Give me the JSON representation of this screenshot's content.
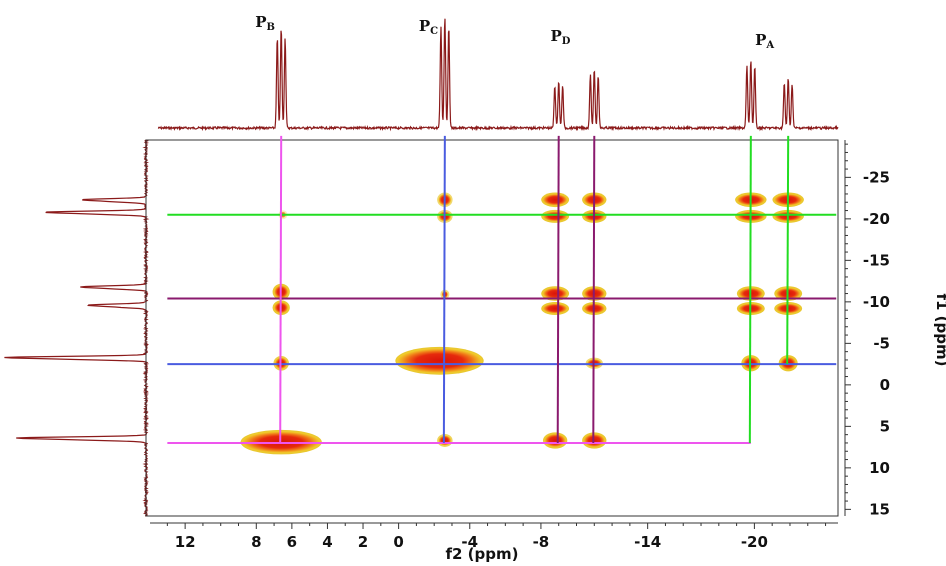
{
  "chart_data": {
    "type": "heatmap",
    "subtype": "2D NMR correlation map with 1D projections",
    "xlabel": "f2 (ppm)",
    "ylabel": "f1 (ppm)",
    "xlim": [
      14.2,
      -24.7
    ],
    "ylim": [
      -29.5,
      15.8
    ],
    "x_ticks": [
      12,
      8,
      6,
      4,
      2,
      0,
      -4,
      -8,
      -14,
      -20
    ],
    "x_tick_labels": [
      "12",
      "8",
      "6",
      "4",
      "2",
      "0",
      "-4",
      "-8",
      "-14",
      "-20"
    ],
    "y_ticks": [
      -25,
      -20,
      -15,
      -10,
      -5,
      0,
      5,
      10,
      15
    ],
    "y_tick_labels": [
      "-25",
      "-20",
      "-15",
      "-10",
      "-5",
      "0",
      "5",
      "10",
      "15"
    ],
    "grid": false,
    "colors": {
      "spectrum": "#8b1a1a",
      "contour_outer": "#e8c21a",
      "contour_inner": "#e01d0b",
      "frame": "#333333"
    },
    "peak_labels": [
      {
        "main": "P",
        "sub": "B",
        "x": 6.6
      },
      {
        "main": "P",
        "sub": "C",
        "x": -2.6
      },
      {
        "main": "P",
        "sub": "D",
        "x": -10.0
      },
      {
        "main": "P",
        "sub": "A",
        "x": -21.5
      }
    ],
    "projection_f2_peaks": [
      {
        "x": 6.6,
        "height": 0.85,
        "multiplet": 3,
        "spacing": 0.22
      },
      {
        "x": -2.6,
        "height": 0.95,
        "multiplet": 3,
        "spacing": 0.22
      },
      {
        "x": -9.0,
        "height": 0.4,
        "multiplet": 3,
        "spacing": 0.22
      },
      {
        "x": -11.0,
        "height": 0.5,
        "multiplet": 3,
        "spacing": 0.22
      },
      {
        "x": -19.8,
        "height": 0.58,
        "multiplet": 3,
        "spacing": 0.22
      },
      {
        "x": -21.9,
        "height": 0.42,
        "multiplet": 3,
        "spacing": 0.22
      }
    ],
    "projection_f1_peaks": [
      {
        "y": -22.3,
        "height": 0.45
      },
      {
        "y": -20.8,
        "height": 0.7
      },
      {
        "y": -11.8,
        "height": 0.45
      },
      {
        "y": -9.6,
        "height": 0.4
      },
      {
        "y": -3.3,
        "height": 0.98
      },
      {
        "y": 6.4,
        "height": 0.9
      }
    ],
    "series": [
      {
        "name": "",
        "orientation": "horizontal",
        "y": -20.5,
        "x_range": [
          13.0,
          -24.6
        ],
        "color": "#22dd22"
      },
      {
        "name": "",
        "orientation": "horizontal",
        "y": -10.4,
        "x_range": [
          13.0,
          -24.6
        ],
        "color": "#8a1a6e"
      },
      {
        "name": "",
        "orientation": "horizontal",
        "y": -2.5,
        "x_range": [
          13.0,
          -24.6
        ],
        "color": "#4a5ce0"
      },
      {
        "name": "",
        "orientation": "horizontal",
        "y": 7.0,
        "x_range": [
          13.0,
          -19.8
        ],
        "color": "#ee55ee"
      },
      {
        "name": "",
        "orientation": "vertical",
        "x": 6.6,
        "y_range": [
          -30.0,
          7.0
        ],
        "color": "#ee55ee"
      },
      {
        "name": "",
        "orientation": "vertical",
        "x": -2.6,
        "y_range": [
          -30.0,
          7.0
        ],
        "color": "#4a5ce0"
      },
      {
        "name": "",
        "orientation": "vertical",
        "x": -9.0,
        "y_range": [
          -30.0,
          7.0
        ],
        "color": "#8a1a6e"
      },
      {
        "name": "",
        "orientation": "vertical",
        "x": -11.0,
        "y_range": [
          -30.0,
          7.0
        ],
        "color": "#8a1a6e"
      },
      {
        "name": "",
        "orientation": "vertical",
        "x": -19.8,
        "y_range": [
          -30.0,
          7.0
        ],
        "color": "#22dd22"
      },
      {
        "name": "",
        "orientation": "vertical",
        "x": -21.9,
        "y_range": [
          -30.0,
          -2.5
        ],
        "color": "#22dd22"
      }
    ],
    "cross_peaks": [
      {
        "x": -2.6,
        "y": -22.3,
        "rx": 0.35,
        "ry": 0.7,
        "intensity": 0.7
      },
      {
        "x": -2.6,
        "y": -20.3,
        "rx": 0.35,
        "ry": 0.6,
        "intensity": 0.7
      },
      {
        "x": 6.5,
        "y": -20.5,
        "rx": 0.1,
        "ry": 0.3,
        "intensity": 0.3
      },
      {
        "x": -8.8,
        "y": -22.3,
        "rx": 0.7,
        "ry": 0.7,
        "intensity": 1.0
      },
      {
        "x": -8.8,
        "y": -20.3,
        "rx": 0.7,
        "ry": 0.6,
        "intensity": 1.0
      },
      {
        "x": -11.0,
        "y": -22.3,
        "rx": 0.6,
        "ry": 0.7,
        "intensity": 1.0
      },
      {
        "x": -11.0,
        "y": -20.3,
        "rx": 0.6,
        "ry": 0.6,
        "intensity": 1.0
      },
      {
        "x": -19.8,
        "y": -22.3,
        "rx": 0.8,
        "ry": 0.7,
        "intensity": 1.0
      },
      {
        "x": -19.8,
        "y": -20.3,
        "rx": 0.8,
        "ry": 0.6,
        "intensity": 1.0
      },
      {
        "x": -21.9,
        "y": -22.3,
        "rx": 0.8,
        "ry": 0.7,
        "intensity": 1.0
      },
      {
        "x": -21.9,
        "y": -20.3,
        "rx": 0.8,
        "ry": 0.6,
        "intensity": 1.0
      },
      {
        "x": 6.6,
        "y": -11.2,
        "rx": 0.4,
        "ry": 0.8,
        "intensity": 1.0
      },
      {
        "x": 6.6,
        "y": -9.3,
        "rx": 0.4,
        "ry": 0.7,
        "intensity": 1.0
      },
      {
        "x": -2.6,
        "y": -10.9,
        "rx": 0.12,
        "ry": 0.4,
        "intensity": 0.6
      },
      {
        "x": -8.8,
        "y": -11.0,
        "rx": 0.7,
        "ry": 0.7,
        "intensity": 1.0
      },
      {
        "x": -8.8,
        "y": -9.2,
        "rx": 0.7,
        "ry": 0.6,
        "intensity": 1.0
      },
      {
        "x": -11.0,
        "y": -11.0,
        "rx": 0.6,
        "ry": 0.7,
        "intensity": 1.0
      },
      {
        "x": -11.0,
        "y": -9.2,
        "rx": 0.6,
        "ry": 0.6,
        "intensity": 1.0
      },
      {
        "x": -19.8,
        "y": -11.0,
        "rx": 0.7,
        "ry": 0.7,
        "intensity": 1.0
      },
      {
        "x": -19.8,
        "y": -9.2,
        "rx": 0.7,
        "ry": 0.6,
        "intensity": 1.0
      },
      {
        "x": -21.9,
        "y": -11.0,
        "rx": 0.7,
        "ry": 0.7,
        "intensity": 1.0
      },
      {
        "x": -21.9,
        "y": -9.2,
        "rx": 0.7,
        "ry": 0.6,
        "intensity": 1.0
      },
      {
        "x": 6.6,
        "y": -2.6,
        "rx": 0.35,
        "ry": 0.7,
        "intensity": 0.9
      },
      {
        "x": -2.3,
        "y": -2.9,
        "rx": 2.4,
        "ry": 1.5,
        "intensity": 1.0
      },
      {
        "x": -11.0,
        "y": -2.6,
        "rx": 0.4,
        "ry": 0.5,
        "intensity": 0.7
      },
      {
        "x": -19.8,
        "y": -2.6,
        "rx": 0.45,
        "ry": 0.8,
        "intensity": 1.0
      },
      {
        "x": -21.9,
        "y": -2.6,
        "rx": 0.45,
        "ry": 0.8,
        "intensity": 1.0
      },
      {
        "x": 6.6,
        "y": 6.9,
        "rx": 2.2,
        "ry": 1.3,
        "intensity": 1.0
      },
      {
        "x": -2.6,
        "y": 6.7,
        "rx": 0.35,
        "ry": 0.6,
        "intensity": 0.8
      },
      {
        "x": -8.8,
        "y": 6.7,
        "rx": 0.6,
        "ry": 0.8,
        "intensity": 1.0
      },
      {
        "x": -11.0,
        "y": 6.7,
        "rx": 0.6,
        "ry": 0.8,
        "intensity": 1.0
      }
    ]
  }
}
